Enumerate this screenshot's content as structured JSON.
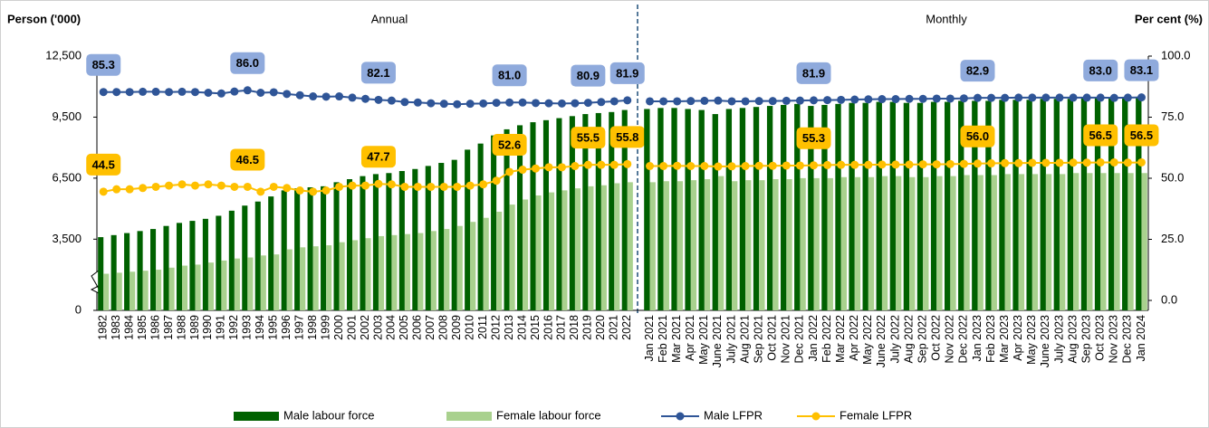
{
  "chart_data": {
    "type": "bar",
    "y_label": "Person ('000)",
    "y2_label": "Per cent (%)",
    "ylim": [
      0,
      12500
    ],
    "yticks": [
      0,
      {
        "value": 3500,
        "label": "3,500"
      },
      {
        "value": 6500,
        "label": "6,500"
      },
      {
        "value": 9500,
        "label": "9,500"
      },
      {
        "value": 12500,
        "label": "12,500"
      }
    ],
    "y2lim": [
      0,
      100
    ],
    "y2ticks": [
      {
        "value": 0,
        "label": "0.0"
      },
      {
        "value": 25,
        "label": "25.0"
      },
      {
        "value": 50,
        "label": "50.0"
      },
      {
        "value": 75,
        "label": "75.0"
      },
      {
        "value": 100,
        "label": "100.0"
      }
    ],
    "series": [
      {
        "name": "Male labour force",
        "color": "#006100",
        "type": "bar"
      },
      {
        "name": "Female labour force",
        "color": "#a9d18e",
        "type": "bar"
      },
      {
        "name": "Male LFPR",
        "color": "#2f5597",
        "type": "line",
        "axis": "y2",
        "label_color": "#8faadc"
      },
      {
        "name": "Female LFPR",
        "color": "#ffc000",
        "type": "line",
        "axis": "y2",
        "label_color": "#ffc000"
      }
    ],
    "panels": [
      {
        "label": "Annual",
        "categories": [
          "1982",
          "1983",
          "1984",
          "1985",
          "1986",
          "1987",
          "1988",
          "1989",
          "1990",
          "1991",
          "1992",
          "1993",
          "1994",
          "1995",
          "1996",
          "1997",
          "1998",
          "1999",
          "2000",
          "2001",
          "2002",
          "2003",
          "2004",
          "2005",
          "2006",
          "2007",
          "2008",
          "2009",
          "2010",
          "2011",
          "2012",
          "2013",
          "2014",
          "2015",
          "2016",
          "2017",
          "2018",
          "2019",
          "2020",
          "2021",
          "2022"
        ],
        "series": [
          {
            "values": [
              3600,
              3700,
              3800,
              3900,
              4000,
              4150,
              4300,
              4400,
              4500,
              4650,
              4900,
              5150,
              5350,
              5600,
              5900,
              6000,
              6050,
              6100,
              6300,
              6450,
              6600,
              6700,
              6750,
              6850,
              6950,
              7100,
              7250,
              7400,
              7900,
              8200,
              8600,
              8900,
              9100,
              9250,
              9350,
              9450,
              9550,
              9650,
              9700,
              9750,
              9850
            ]
          },
          {
            "values": [
              1800,
              1850,
              1900,
              1950,
              2000,
              2100,
              2200,
              2250,
              2350,
              2450,
              2550,
              2600,
              2700,
              2750,
              3000,
              3100,
              3150,
              3200,
              3350,
              3450,
              3550,
              3650,
              3700,
              3750,
              3800,
              3900,
              4000,
              4150,
              4350,
              4550,
              4850,
              5200,
              5450,
              5650,
              5800,
              5900,
              6000,
              6100,
              6150,
              6250,
              6300
            ]
          },
          {
            "values": [
              85.3,
              85.3,
              85.3,
              85.4,
              85.4,
              85.3,
              85.4,
              85.3,
              85.0,
              84.7,
              85.5,
              86.0,
              85.0,
              85.2,
              84.5,
              84.0,
              83.5,
              83.4,
              83.5,
              83.0,
              82.5,
              82.1,
              81.8,
              81.2,
              81.0,
              80.7,
              80.5,
              80.3,
              80.5,
              80.6,
              80.9,
              81.0,
              81.0,
              80.8,
              80.7,
              80.6,
              80.7,
              80.9,
              81.2,
              81.5,
              81.9
            ],
            "value_labels": [
              "85.3",
              null,
              null,
              null,
              null,
              null,
              null,
              null,
              null,
              null,
              null,
              "86.0",
              null,
              null,
              null,
              null,
              null,
              null,
              null,
              null,
              null,
              "82.1",
              null,
              null,
              null,
              null,
              null,
              null,
              null,
              null,
              null,
              "81.0",
              null,
              null,
              null,
              null,
              null,
              "80.9",
              null,
              null,
              "81.9"
            ]
          },
          {
            "values": [
              44.5,
              45.5,
              45.5,
              46.0,
              46.5,
              47.0,
              47.5,
              47.0,
              47.5,
              47.0,
              46.5,
              46.5,
              44.5,
              46.5,
              46.0,
              45.0,
              44.5,
              45.0,
              46.5,
              47.0,
              47.0,
              47.7,
              47.5,
              46.5,
              46.5,
              46.5,
              46.5,
              46.5,
              47.0,
              47.5,
              49.0,
              52.6,
              53.5,
              54.0,
              54.5,
              54.5,
              55.0,
              55.5,
              55.5,
              55.5,
              55.8
            ],
            "value_labels": [
              "44.5",
              null,
              null,
              null,
              null,
              null,
              null,
              null,
              null,
              null,
              null,
              "46.5",
              null,
              null,
              null,
              null,
              null,
              null,
              null,
              null,
              null,
              "47.7",
              null,
              null,
              null,
              null,
              null,
              null,
              null,
              null,
              null,
              "52.6",
              null,
              null,
              null,
              null,
              null,
              "55.5",
              null,
              null,
              "55.8"
            ]
          }
        ]
      },
      {
        "label": "Monthly",
        "categories": [
          "Jan 2021",
          "Feb 2021",
          "Mar 2021",
          "Apr 2021",
          "May 2021",
          "June 2021",
          "July 2021",
          "Aug 2021",
          "Sep 2021",
          "Oct 2021",
          "Nov 2021",
          "Dec 2021",
          "Jan 2022",
          "Feb 2022",
          "Mar 2022",
          "Apr 2022",
          "May 2022",
          "June 2022",
          "July 2022",
          "Aug 2022",
          "Sep 2022",
          "Oct 2022",
          "Nov 2022",
          "Dec 2022",
          "Jan 2023",
          "Feb 2023",
          "Mar 2023",
          "Apr 2023",
          "May 2023",
          "June 2023",
          "July 2023",
          "Aug 2023",
          "Sep 2023",
          "Oct 2023",
          "Nov 2023",
          "Dec 2023",
          "Jan 2024"
        ],
        "series": [
          {
            "values": [
              9900,
              9950,
              9950,
              9900,
              9850,
              9650,
              9900,
              9950,
              10000,
              10050,
              10100,
              10150,
              10050,
              10100,
              10150,
              10200,
              10200,
              10250,
              10250,
              10200,
              10200,
              10250,
              10250,
              10300,
              10300,
              10300,
              10350,
              10350,
              10350,
              10400,
              10400,
              10400,
              10450,
              10450,
              10450,
              10500,
              10500
            ]
          },
          {
            "values": [
              6300,
              6350,
              6350,
              6400,
              6450,
              6600,
              6350,
              6400,
              6400,
              6450,
              6450,
              6500,
              6500,
              6500,
              6550,
              6550,
              6550,
              6600,
              6600,
              6550,
              6550,
              6600,
              6600,
              6650,
              6650,
              6650,
              6700,
              6700,
              6700,
              6700,
              6700,
              6750,
              6750,
              6750,
              6750,
              6750,
              6750
            ]
          },
          {
            "values": [
              81.5,
              81.5,
              81.5,
              81.6,
              81.7,
              81.8,
              81.5,
              81.5,
              81.6,
              81.6,
              81.7,
              81.8,
              81.9,
              82.0,
              82.1,
              82.2,
              82.3,
              82.4,
              82.4,
              82.5,
              82.5,
              82.6,
              82.6,
              82.7,
              82.9,
              82.9,
              82.9,
              83.0,
              83.0,
              83.0,
              83.0,
              83.0,
              83.0,
              83.0,
              82.9,
              83.0,
              83.1
            ],
            "value_labels": [
              null,
              null,
              null,
              null,
              null,
              null,
              null,
              null,
              null,
              null,
              null,
              null,
              "81.9",
              null,
              null,
              null,
              null,
              null,
              null,
              null,
              null,
              null,
              null,
              null,
              "82.9",
              null,
              null,
              null,
              null,
              null,
              null,
              null,
              null,
              "83.0",
              null,
              null,
              "83.1"
            ]
          },
          {
            "values": [
              55.0,
              55.0,
              55.1,
              55.0,
              55.0,
              54.8,
              54.9,
              55.0,
              55.1,
              55.1,
              55.2,
              55.2,
              55.3,
              55.4,
              55.5,
              55.5,
              55.5,
              55.6,
              55.6,
              55.6,
              55.7,
              55.7,
              55.8,
              55.9,
              56.0,
              56.1,
              56.2,
              56.2,
              56.3,
              56.3,
              56.3,
              56.4,
              56.4,
              56.5,
              56.5,
              56.4,
              56.5
            ],
            "value_labels": [
              null,
              null,
              null,
              null,
              null,
              null,
              null,
              null,
              null,
              null,
              null,
              null,
              "55.3",
              null,
              null,
              null,
              null,
              null,
              null,
              null,
              null,
              null,
              null,
              null,
              "56.0",
              null,
              null,
              null,
              null,
              null,
              null,
              null,
              null,
              "56.5",
              null,
              null,
              "56.5"
            ]
          }
        ]
      }
    ]
  }
}
